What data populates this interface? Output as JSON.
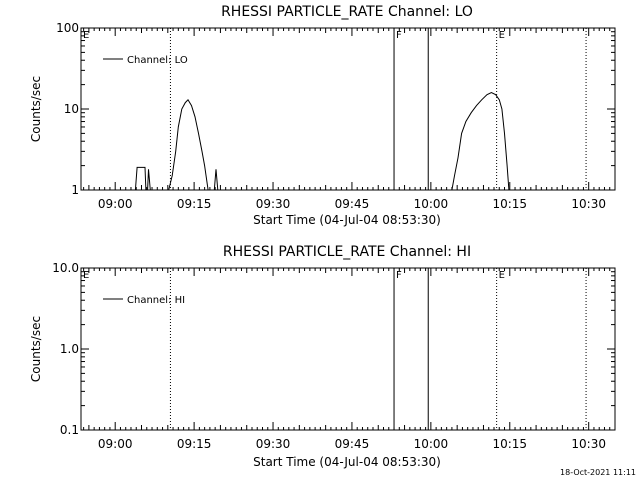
{
  "chart_data": [
    {
      "type": "line",
      "title": "RHESSI PARTICLE_RATE Channel: LO",
      "xlabel": "Start Time (04-Jul-04 08:53:30)",
      "ylabel": "Counts/sec",
      "y_scale": "log",
      "ylim": [
        1,
        100
      ],
      "y_ticks": [
        {
          "v": 1,
          "label": "1"
        },
        {
          "v": 10,
          "label": "10"
        },
        {
          "v": 100,
          "label": "100"
        }
      ],
      "xlim": [
        "08:53:30",
        "10:35:00"
      ],
      "x_ticks": [
        "09:00",
        "09:15",
        "09:30",
        "09:45",
        "10:00",
        "10:15",
        "10:30"
      ],
      "legend": {
        "position": "top-left",
        "entries": [
          "Channel: LO"
        ]
      },
      "grid": false,
      "markers": [
        {
          "time": "08:53:30",
          "style": "dotted",
          "label": "E"
        },
        {
          "time": "09:10:30",
          "style": "dotted",
          "label": ""
        },
        {
          "time": "09:53:00",
          "style": "solid",
          "label": "F"
        },
        {
          "time": "09:59:30",
          "style": "solid",
          "label": ""
        },
        {
          "time": "10:12:30",
          "style": "dotted",
          "label": "E"
        },
        {
          "time": "10:29:30",
          "style": "dotted",
          "label": ""
        }
      ],
      "series": [
        {
          "name": "Channel: LO",
          "segments": [
            [
              [
                "09:03:50",
                1
              ],
              [
                "09:04:10",
                1.9
              ],
              [
                "09:05:40",
                1.9
              ],
              [
                "09:05:50",
                1
              ]
            ],
            [
              [
                "09:06:10",
                1
              ],
              [
                "09:06:20",
                1.8
              ],
              [
                "09:06:40",
                1
              ]
            ],
            [
              [
                "09:10:10",
                1
              ],
              [
                "09:10:50",
                1.5
              ],
              [
                "09:11:30",
                3
              ],
              [
                "09:12:00",
                6
              ],
              [
                "09:12:40",
                10
              ],
              [
                "09:13:20",
                12
              ],
              [
                "09:13:50",
                13
              ],
              [
                "09:14:30",
                11
              ],
              [
                "09:15:10",
                8
              ],
              [
                "09:15:50",
                5
              ],
              [
                "09:16:30",
                3
              ],
              [
                "09:17:00",
                2
              ],
              [
                "09:17:40",
                1
              ]
            ],
            [
              [
                "09:18:50",
                1
              ],
              [
                "09:19:10",
                1.8
              ],
              [
                "09:19:30",
                1
              ]
            ],
            [
              [
                "10:04:00",
                1
              ],
              [
                "10:04:30",
                1.5
              ],
              [
                "10:05:10",
                2.5
              ],
              [
                "10:05:50",
                5
              ],
              [
                "10:06:40",
                7
              ],
              [
                "10:07:40",
                9
              ],
              [
                "10:08:40",
                11
              ],
              [
                "10:09:40",
                13
              ],
              [
                "10:10:40",
                15
              ],
              [
                "10:11:30",
                16
              ],
              [
                "10:12:20",
                15
              ],
              [
                "10:13:00",
                13
              ],
              [
                "10:13:30",
                10
              ],
              [
                "10:14:00",
                5
              ],
              [
                "10:14:30",
                2
              ],
              [
                "10:14:50",
                1
              ]
            ]
          ]
        }
      ]
    },
    {
      "type": "line",
      "title": "RHESSI PARTICLE_RATE Channel: HI",
      "xlabel": "Start Time (04-Jul-04 08:53:30)",
      "ylabel": "Counts/sec",
      "y_scale": "log",
      "ylim": [
        0.1,
        10
      ],
      "y_ticks": [
        {
          "v": 0.1,
          "label": "0.1"
        },
        {
          "v": 1,
          "label": "1.0"
        },
        {
          "v": 10,
          "label": "10.0"
        }
      ],
      "xlim": [
        "08:53:30",
        "10:35:00"
      ],
      "x_ticks": [
        "09:00",
        "09:15",
        "09:30",
        "09:45",
        "10:00",
        "10:15",
        "10:30"
      ],
      "legend": {
        "position": "top-left",
        "entries": [
          "Channel: HI"
        ]
      },
      "grid": false,
      "markers": [
        {
          "time": "08:53:30",
          "style": "dotted",
          "label": "E"
        },
        {
          "time": "09:10:30",
          "style": "dotted",
          "label": ""
        },
        {
          "time": "09:53:00",
          "style": "solid",
          "label": "F"
        },
        {
          "time": "09:59:30",
          "style": "solid",
          "label": ""
        },
        {
          "time": "10:12:30",
          "style": "dotted",
          "label": "E"
        },
        {
          "time": "10:29:30",
          "style": "dotted",
          "label": ""
        }
      ],
      "series": [
        {
          "name": "Channel: HI",
          "segments": []
        }
      ]
    }
  ],
  "footer": {
    "timestamp": "18-Oct-2021 11:11"
  }
}
